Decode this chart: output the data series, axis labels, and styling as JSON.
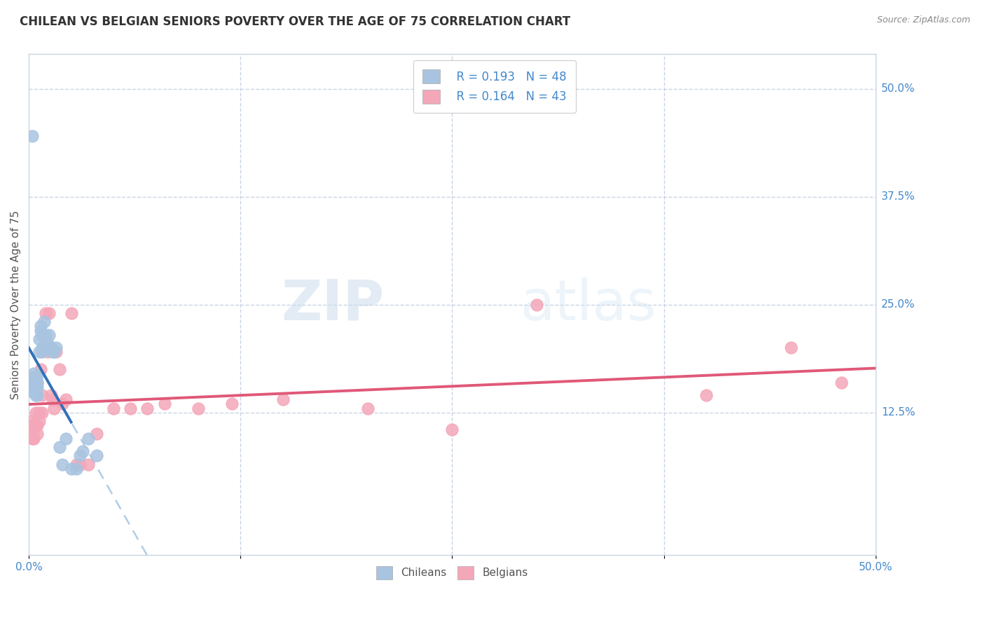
{
  "title": "CHILEAN VS BELGIAN SENIORS POVERTY OVER THE AGE OF 75 CORRELATION CHART",
  "source": "Source: ZipAtlas.com",
  "ylabel": "Seniors Poverty Over the Age of 75",
  "xlim": [
    0.0,
    0.5
  ],
  "ylim": [
    -0.04,
    0.54
  ],
  "ytick_right": [
    0.5,
    0.375,
    0.25,
    0.125
  ],
  "ytick_right_labels": [
    "50.0%",
    "37.5%",
    "25.0%",
    "12.5%"
  ],
  "chilean_color": "#a8c4e0",
  "belgian_color": "#f4a7b9",
  "trendline_chilean_color": "#3070b8",
  "trendline_belgian_color": "#e05878",
  "trendline_dashed_color": "#b0cce8",
  "legend_R_chilean": "R = 0.193",
  "legend_N_chilean": "N = 48",
  "legend_R_belgian": "R = 0.164",
  "legend_N_belgian": "N = 43",
  "watermark_zip": "ZIP",
  "watermark_atlas": "atlas",
  "chilean_x": [
    0.001,
    0.001,
    0.002,
    0.002,
    0.002,
    0.002,
    0.003,
    0.003,
    0.003,
    0.003,
    0.003,
    0.003,
    0.004,
    0.004,
    0.004,
    0.004,
    0.004,
    0.005,
    0.005,
    0.005,
    0.005,
    0.005,
    0.006,
    0.006,
    0.007,
    0.007,
    0.008,
    0.008,
    0.008,
    0.009,
    0.01,
    0.01,
    0.011,
    0.012,
    0.013,
    0.014,
    0.015,
    0.016,
    0.018,
    0.02,
    0.022,
    0.025,
    0.028,
    0.03,
    0.032,
    0.035,
    0.04,
    0.002
  ],
  "chilean_y": [
    0.155,
    0.165,
    0.15,
    0.16,
    0.155,
    0.162,
    0.158,
    0.165,
    0.155,
    0.148,
    0.16,
    0.17,
    0.155,
    0.165,
    0.16,
    0.155,
    0.145,
    0.16,
    0.155,
    0.145,
    0.168,
    0.16,
    0.195,
    0.21,
    0.22,
    0.225,
    0.215,
    0.195,
    0.2,
    0.23,
    0.2,
    0.215,
    0.205,
    0.215,
    0.2,
    0.195,
    0.195,
    0.2,
    0.085,
    0.065,
    0.095,
    0.06,
    0.06,
    0.075,
    0.08,
    0.095,
    0.075,
    0.445
  ],
  "belgian_x": [
    0.001,
    0.002,
    0.002,
    0.003,
    0.003,
    0.004,
    0.004,
    0.005,
    0.005,
    0.006,
    0.006,
    0.007,
    0.008,
    0.008,
    0.009,
    0.01,
    0.011,
    0.012,
    0.013,
    0.014,
    0.015,
    0.016,
    0.018,
    0.02,
    0.022,
    0.025,
    0.028,
    0.03,
    0.035,
    0.04,
    0.05,
    0.06,
    0.07,
    0.08,
    0.1,
    0.12,
    0.15,
    0.2,
    0.25,
    0.3,
    0.4,
    0.45,
    0.48
  ],
  "belgian_y": [
    0.115,
    0.11,
    0.095,
    0.095,
    0.105,
    0.125,
    0.11,
    0.11,
    0.1,
    0.125,
    0.115,
    0.175,
    0.125,
    0.145,
    0.2,
    0.24,
    0.195,
    0.24,
    0.145,
    0.14,
    0.13,
    0.195,
    0.175,
    0.135,
    0.14,
    0.24,
    0.065,
    0.065,
    0.065,
    0.1,
    0.13,
    0.13,
    0.13,
    0.135,
    0.13,
    0.135,
    0.14,
    0.13,
    0.105,
    0.25,
    0.145,
    0.2,
    0.16
  ],
  "background_color": "#ffffff",
  "grid_color": "#c8d4e4",
  "title_fontsize": 12,
  "axis_label_fontsize": 11
}
